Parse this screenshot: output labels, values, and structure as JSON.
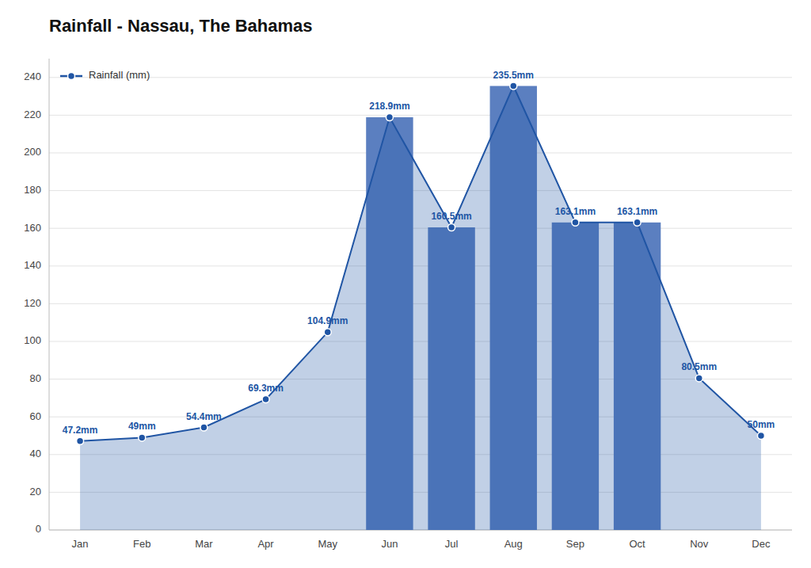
{
  "chart_data": {
    "type": "area",
    "title": "Rainfall - Nassau, The Bahamas",
    "categories": [
      "Jan",
      "Feb",
      "Mar",
      "Apr",
      "May",
      "Jun",
      "Jul",
      "Aug",
      "Sep",
      "Oct",
      "Nov",
      "Dec"
    ],
    "series": [
      {
        "name": "Rainfall (mm)",
        "type": "area",
        "color": "#2055a4",
        "marker": "circle",
        "values": [
          47.2,
          49.0,
          54.4,
          69.3,
          104.9,
          218.9,
          160.5,
          235.5,
          163.1,
          163.1,
          80.5,
          50.0
        ],
        "value_labels": [
          "47.2mm",
          "49mm",
          "54.4mm",
          "69.3mm",
          "104.9mm",
          "218.9mm",
          "160.5mm",
          "235.5mm",
          "163.1mm",
          "163.1mm",
          "80.5mm",
          "50mm"
        ]
      },
      {
        "type": "bar",
        "color": "#5b7fc0",
        "values": [
          null,
          null,
          null,
          null,
          null,
          218.9,
          160.5,
          235.5,
          163.1,
          163.1,
          null,
          null
        ]
      }
    ],
    "ylim": [
      0,
      250
    ],
    "yticks": [
      0,
      20,
      40,
      60,
      80,
      100,
      120,
      140,
      160,
      180,
      200,
      220,
      240
    ],
    "grid": true,
    "legend": "upper left",
    "data_labels": true
  }
}
